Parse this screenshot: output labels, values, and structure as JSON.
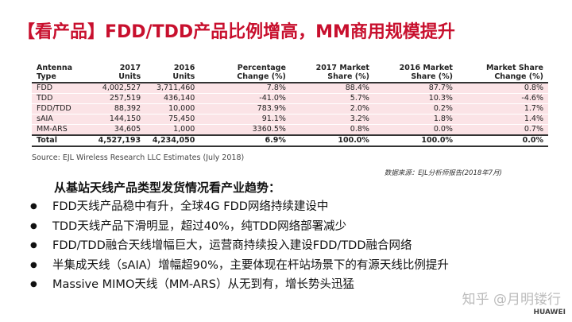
{
  "title": "【看产品】FDD/TDD产品比例增高，MM商用规模提升",
  "table": {
    "header": [
      "Antenna Type",
      "2017 Units",
      "2016 Units",
      "Percentage Change (%)",
      "2017 Market Share (%)",
      "2016 Market Share (%)",
      "Market Share Change (%)"
    ],
    "rows": [
      [
        "FDD",
        "4,002,527",
        "3,711,460",
        "7.8%",
        "88.4%",
        "87.7%",
        "0.8%"
      ],
      [
        "TDD",
        "257,519",
        "436,140",
        "-41.0%",
        "5.7%",
        "10.3%",
        "-4.6%"
      ],
      [
        "FDD/TDD",
        "88,392",
        "10,000",
        "783.9%",
        "2.0%",
        "0.2%",
        "1.7%"
      ],
      [
        "sAIA",
        "144,150",
        "75,450",
        "91.1%",
        "3.2%",
        "1.8%",
        "1.4%"
      ],
      [
        "MM-ARS",
        "34,605",
        "1,000",
        "3360.5%",
        "0.8%",
        "0.0%",
        "0.7%"
      ]
    ],
    "total": [
      "Total",
      "4,527,193",
      "4,234,050",
      "6.9%",
      "100.0%",
      "100.0%",
      "0.0%"
    ],
    "source": "Source: EJL Wireless Research LLC Estimates (July 2018)"
  },
  "data_source": "数据来源：EJL分析师报告(2018年7月)",
  "heading": "从基站天线产品类型发货情况看产业趋势：",
  "bullets": [
    "FDD天线产品稳中有升，全球4G FDD网络持续建设中",
    "TDD天线产品下滑明显，超过40%，纯TDD网络部署减少",
    "FDD/TDD融合天线增幅巨大，运营商持续投入建设FDD/TDD融合网络",
    "半集成天线（sAIA）增幅超90%，主要体现在杆站场景下的有源天线比例提升",
    "Massive MIMO天线（MM-ARS）从无到有，增长势头迅猛"
  ],
  "watermark": "知乎 @月明镂行",
  "logo": "HUAWEI"
}
